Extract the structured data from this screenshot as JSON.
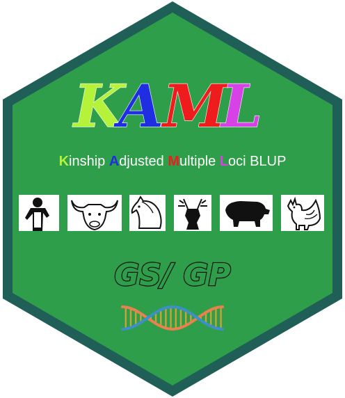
{
  "title": {
    "letters": [
      {
        "char": "K",
        "color": "#b5f23a"
      },
      {
        "char": "A",
        "color": "#1f2ee0"
      },
      {
        "char": "M",
        "color": "#ee1c1c"
      },
      {
        "char": "L",
        "color": "#d642e6"
      }
    ]
  },
  "subtitle": {
    "words": [
      {
        "initial": "K",
        "rest": "inship ",
        "color": "#b5f23a"
      },
      {
        "initial": "A",
        "rest": "djusted ",
        "color": "#1f2ee0"
      },
      {
        "initial": "M",
        "rest": "ultiple ",
        "color": "#ee1c1c"
      },
      {
        "initial": "L",
        "rest": "oci BLUP",
        "color": "#d642e6"
      }
    ]
  },
  "species": [
    {
      "icon": "human-runner-icon"
    },
    {
      "icon": "bull-icon"
    },
    {
      "icon": "horse-icon"
    },
    {
      "icon": "deer-icon"
    },
    {
      "icon": "pig-icon"
    },
    {
      "icon": "rooster-icon"
    }
  ],
  "tagline": "GS/ GP",
  "colors": {
    "hex_fill": "#2e9e4a",
    "hex_border": "#1f5f57",
    "dna_strand_a": "#e8814e",
    "dna_strand_b": "#3d8fc9",
    "dna_rung": "#c9a23a"
  }
}
